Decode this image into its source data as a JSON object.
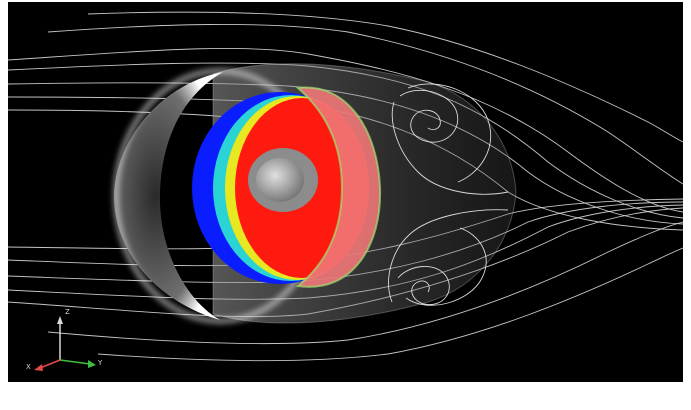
{
  "scene": {
    "background": "#000000",
    "streamline_color": "#e6e6e6",
    "body_color": "#9a9a9a",
    "contour_colors": {
      "low": "#0a1dff",
      "mid": "#2ad4d4",
      "mid2": "#e8e820",
      "high": "#ff1a10",
      "translucent": "#f07878"
    }
  },
  "axes_triad": {
    "labels": {
      "vertical": "Z",
      "left": "X",
      "right": "Y"
    },
    "colors": {
      "vertical": "#d9d9d9",
      "left": "#e34a4a",
      "right": "#3fbf3f"
    }
  }
}
